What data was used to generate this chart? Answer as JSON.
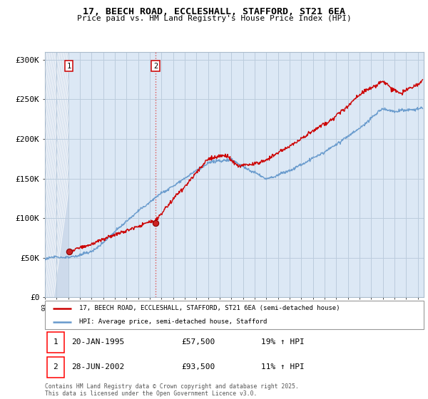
{
  "title_line1": "17, BEECH ROAD, ECCLESHALL, STAFFORD, ST21 6EA",
  "title_line2": "Price paid vs. HM Land Registry's House Price Index (HPI)",
  "ylabel_ticks": [
    "£0",
    "£50K",
    "£100K",
    "£150K",
    "£200K",
    "£250K",
    "£300K"
  ],
  "ytick_values": [
    0,
    50000,
    100000,
    150000,
    200000,
    250000,
    300000
  ],
  "ylim": [
    0,
    310000
  ],
  "xlim_start": 1993.0,
  "xlim_end": 2025.5,
  "purchase1_date": 1995.055,
  "purchase1_price": 57500,
  "purchase2_date": 2002.49,
  "purchase2_price": 93500,
  "legend_line1": "17, BEECH ROAD, ECCLESHALL, STAFFORD, ST21 6EA (semi-detached house)",
  "legend_line2": "HPI: Average price, semi-detached house, Stafford",
  "footer": "Contains HM Land Registry data © Crown copyright and database right 2025.\nThis data is licensed under the Open Government Licence v3.0.",
  "line_color_red": "#cc0000",
  "line_color_blue": "#6699cc",
  "grid_color": "#bbccdd",
  "bg_plain": "#ddeeff",
  "bg_hatch_fill": "#ccddf0"
}
